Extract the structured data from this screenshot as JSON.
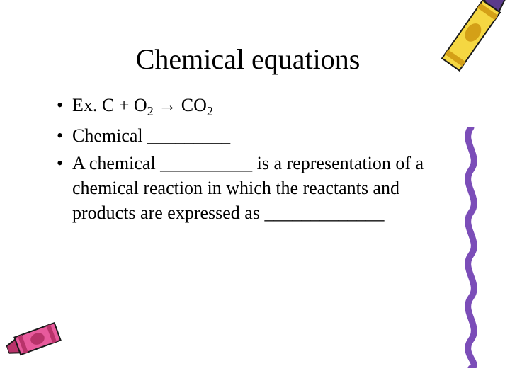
{
  "title": "Chemical equations",
  "bullets": [
    {
      "html": "Ex. C + O<span class='sub'>2</span> → CO<span class='sub'>2</span>"
    },
    {
      "html": "Chemical _________"
    },
    {
      "html": "A chemical __________ is a representation of a chemical reaction in which the reactants and products are expressed as _____________"
    }
  ],
  "colors": {
    "crayon_yellow_body": "#f5d742",
    "crayon_yellow_stripe": "#d4a017",
    "crayon_yellow_tip": "#5b3a8c",
    "crayon_pink_body": "#e85a9c",
    "crayon_pink_stripe": "#b8336a",
    "squiggle": "#7b4db8",
    "outline": "#1a1a1a"
  }
}
